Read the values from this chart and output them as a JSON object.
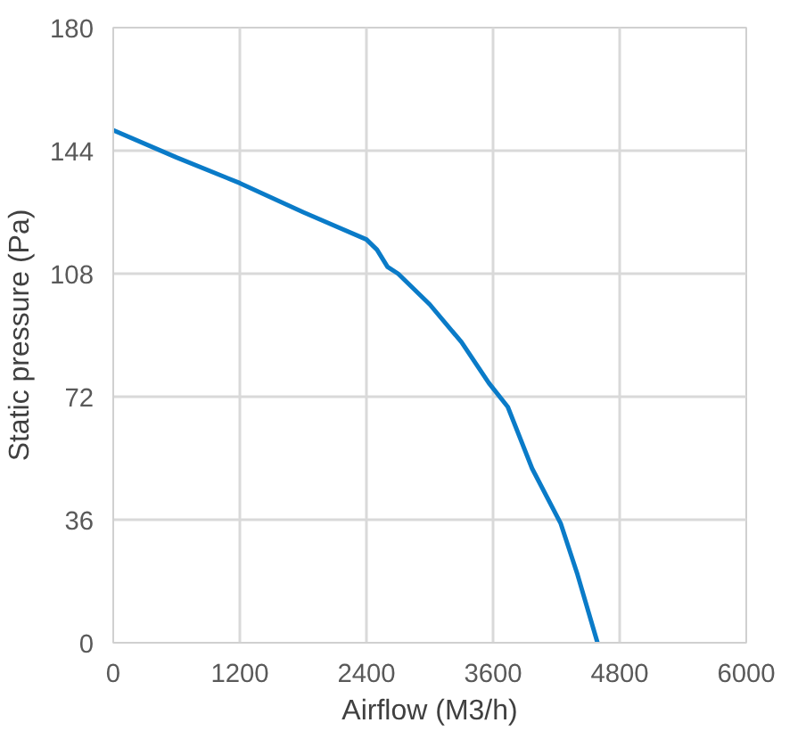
{
  "chart_data": {
    "type": "line",
    "xlabel": "Airflow (M3/h)",
    "ylabel": "Static pressure (Pa)",
    "x": [
      0,
      600,
      1200,
      1800,
      2400,
      2500,
      2600,
      2700,
      3000,
      3300,
      3560,
      3740,
      3970,
      4240,
      4400,
      4590
    ],
    "series": [
      {
        "color": "#0a7bc8",
        "values": [
          150,
          142,
          134.5,
          126,
          118,
          115,
          110,
          108,
          99,
          88,
          76,
          69,
          51,
          35,
          20,
          0
        ]
      }
    ],
    "xlim": [
      0,
      6000
    ],
    "ylim": [
      0,
      180
    ],
    "xticks": [
      0,
      1200,
      2400,
      3600,
      4800,
      6000
    ],
    "yticks": [
      0,
      36,
      72,
      108,
      144,
      180
    ],
    "grid": true,
    "marker": "none",
    "line_style": "solid"
  }
}
